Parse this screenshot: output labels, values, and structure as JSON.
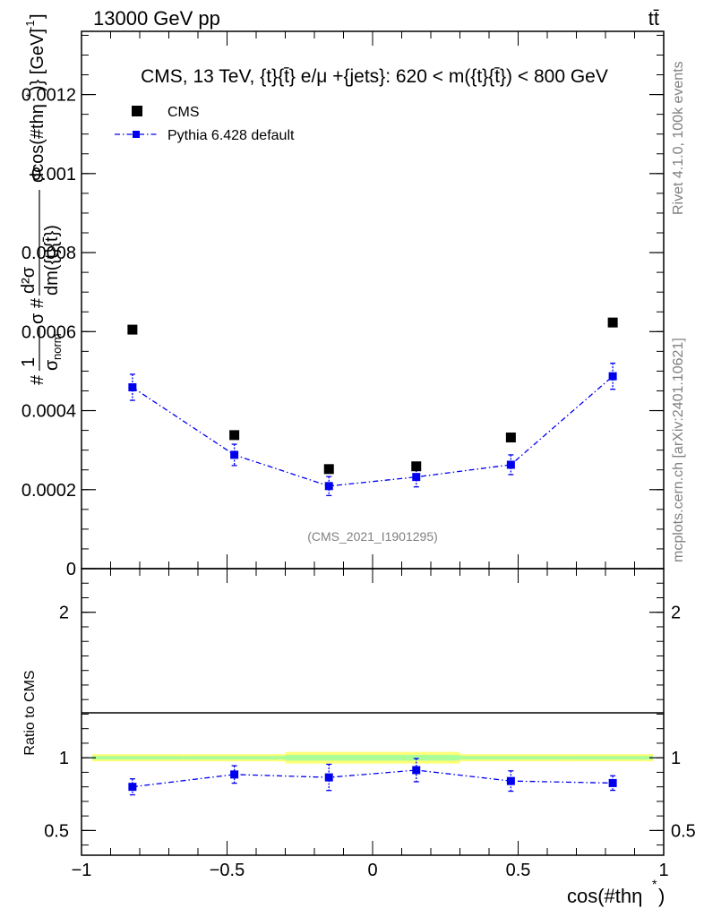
{
  "header": {
    "left_label": "13000 GeV pp",
    "right_label": "tt̄"
  },
  "side_labels": {
    "rivet": "Rivet 4.1.0,  100k events",
    "mcplots": "mcplots.cern.ch [arXiv:2401.10621]"
  },
  "chart_data": [
    {
      "type": "scatter",
      "panel": "main",
      "title": "CMS, 13 TeV, {t}{t̄} e/μ +{jets}: 620 < m({t}{t̄}) < 800 GeV",
      "ylabel_parts": {
        "hash": "#",
        "frac_num": "1",
        "frac_den": "σnorm",
        "mid": "σ #",
        "frac2_num": "d²σ",
        "frac2_den": "dm({t}{t̄})",
        "tail": "dcos(#thη*)} [GeV]⁻¹]"
      },
      "ylabel_texts": {
        "hash": "#",
        "one": "1",
        "sigma": "σ",
        "norm": "norm",
        "mid": "σ #",
        "d2sigma": "d²σ",
        "dm": "dm({t}{t̄})",
        "tail": "dcos(#thη",
        "star": "*",
        "tail2": ")} [GeV]",
        "minus1": "-1",
        "bracket": "]"
      },
      "annotation": "(CMS_2021_I1901295)",
      "xlim": [
        -1.0,
        1.0
      ],
      "ylim": [
        0,
        0.00136
      ],
      "y_ticks": [
        0,
        0.0002,
        0.0004,
        0.0006,
        0.0008,
        0.001,
        0.0012
      ],
      "y_tick_labels": [
        "0",
        "0.0002",
        "0.0004",
        "0.0006",
        "0.0008",
        "0.001",
        "0.0012"
      ],
      "x": [
        -0.825,
        -0.475,
        -0.15,
        0.15,
        0.475,
        0.825
      ],
      "x_bin_edges": [
        -1.0,
        -0.65,
        -0.3,
        0.0,
        0.3,
        0.65,
        1.0
      ],
      "series": [
        {
          "name": "CMS",
          "style": "data",
          "color": "#000000",
          "values": [
            0.000605,
            0.000338,
            0.000252,
            0.000259,
            0.000332,
            0.000623
          ]
        },
        {
          "name": "Pythia 6.428 default",
          "style": "line",
          "color": "#0000ee",
          "values": [
            0.000459,
            0.000288,
            0.000209,
            0.000232,
            0.000263,
            0.000487
          ],
          "errors": [
            3.3e-05,
            2.7e-05,
            2.4e-05,
            2.5e-05,
            2.5e-05,
            3.3e-05
          ]
        }
      ]
    },
    {
      "type": "scatter",
      "panel": "ratio",
      "ylabel": "Ratio to CMS",
      "xlabel": "cos(#thη",
      "xlabel_star": "*",
      "xlabel_close": ")",
      "xlim": [
        -1.0,
        1.0
      ],
      "ylim": [
        0.33,
        2.3
      ],
      "y_ticks": [
        0.5,
        1,
        2
      ],
      "y_tick_labels": [
        "0.5",
        "1",
        "2"
      ],
      "x_ticks": [
        -1,
        -0.5,
        0,
        0.5,
        1
      ],
      "x_tick_labels": [
        "−1",
        "−0.5",
        "0",
        "0.5",
        "1"
      ],
      "band": {
        "inner_color": "#aaff99",
        "outer_color": "#ffff77",
        "inner_halfwidth": [
          0.012,
          0.012,
          0.02,
          0.02,
          0.012,
          0.012
        ],
        "outer_halfwidth": [
          0.025,
          0.025,
          0.04,
          0.04,
          0.025,
          0.025
        ]
      },
      "series": [
        {
          "name": "Pythia 6.428 default",
          "color": "#0000ee",
          "values": [
            0.8,
            0.885,
            0.865,
            0.915,
            0.84,
            0.826
          ],
          "errors": [
            0.055,
            0.06,
            0.09,
            0.08,
            0.07,
            0.05
          ]
        }
      ]
    }
  ]
}
